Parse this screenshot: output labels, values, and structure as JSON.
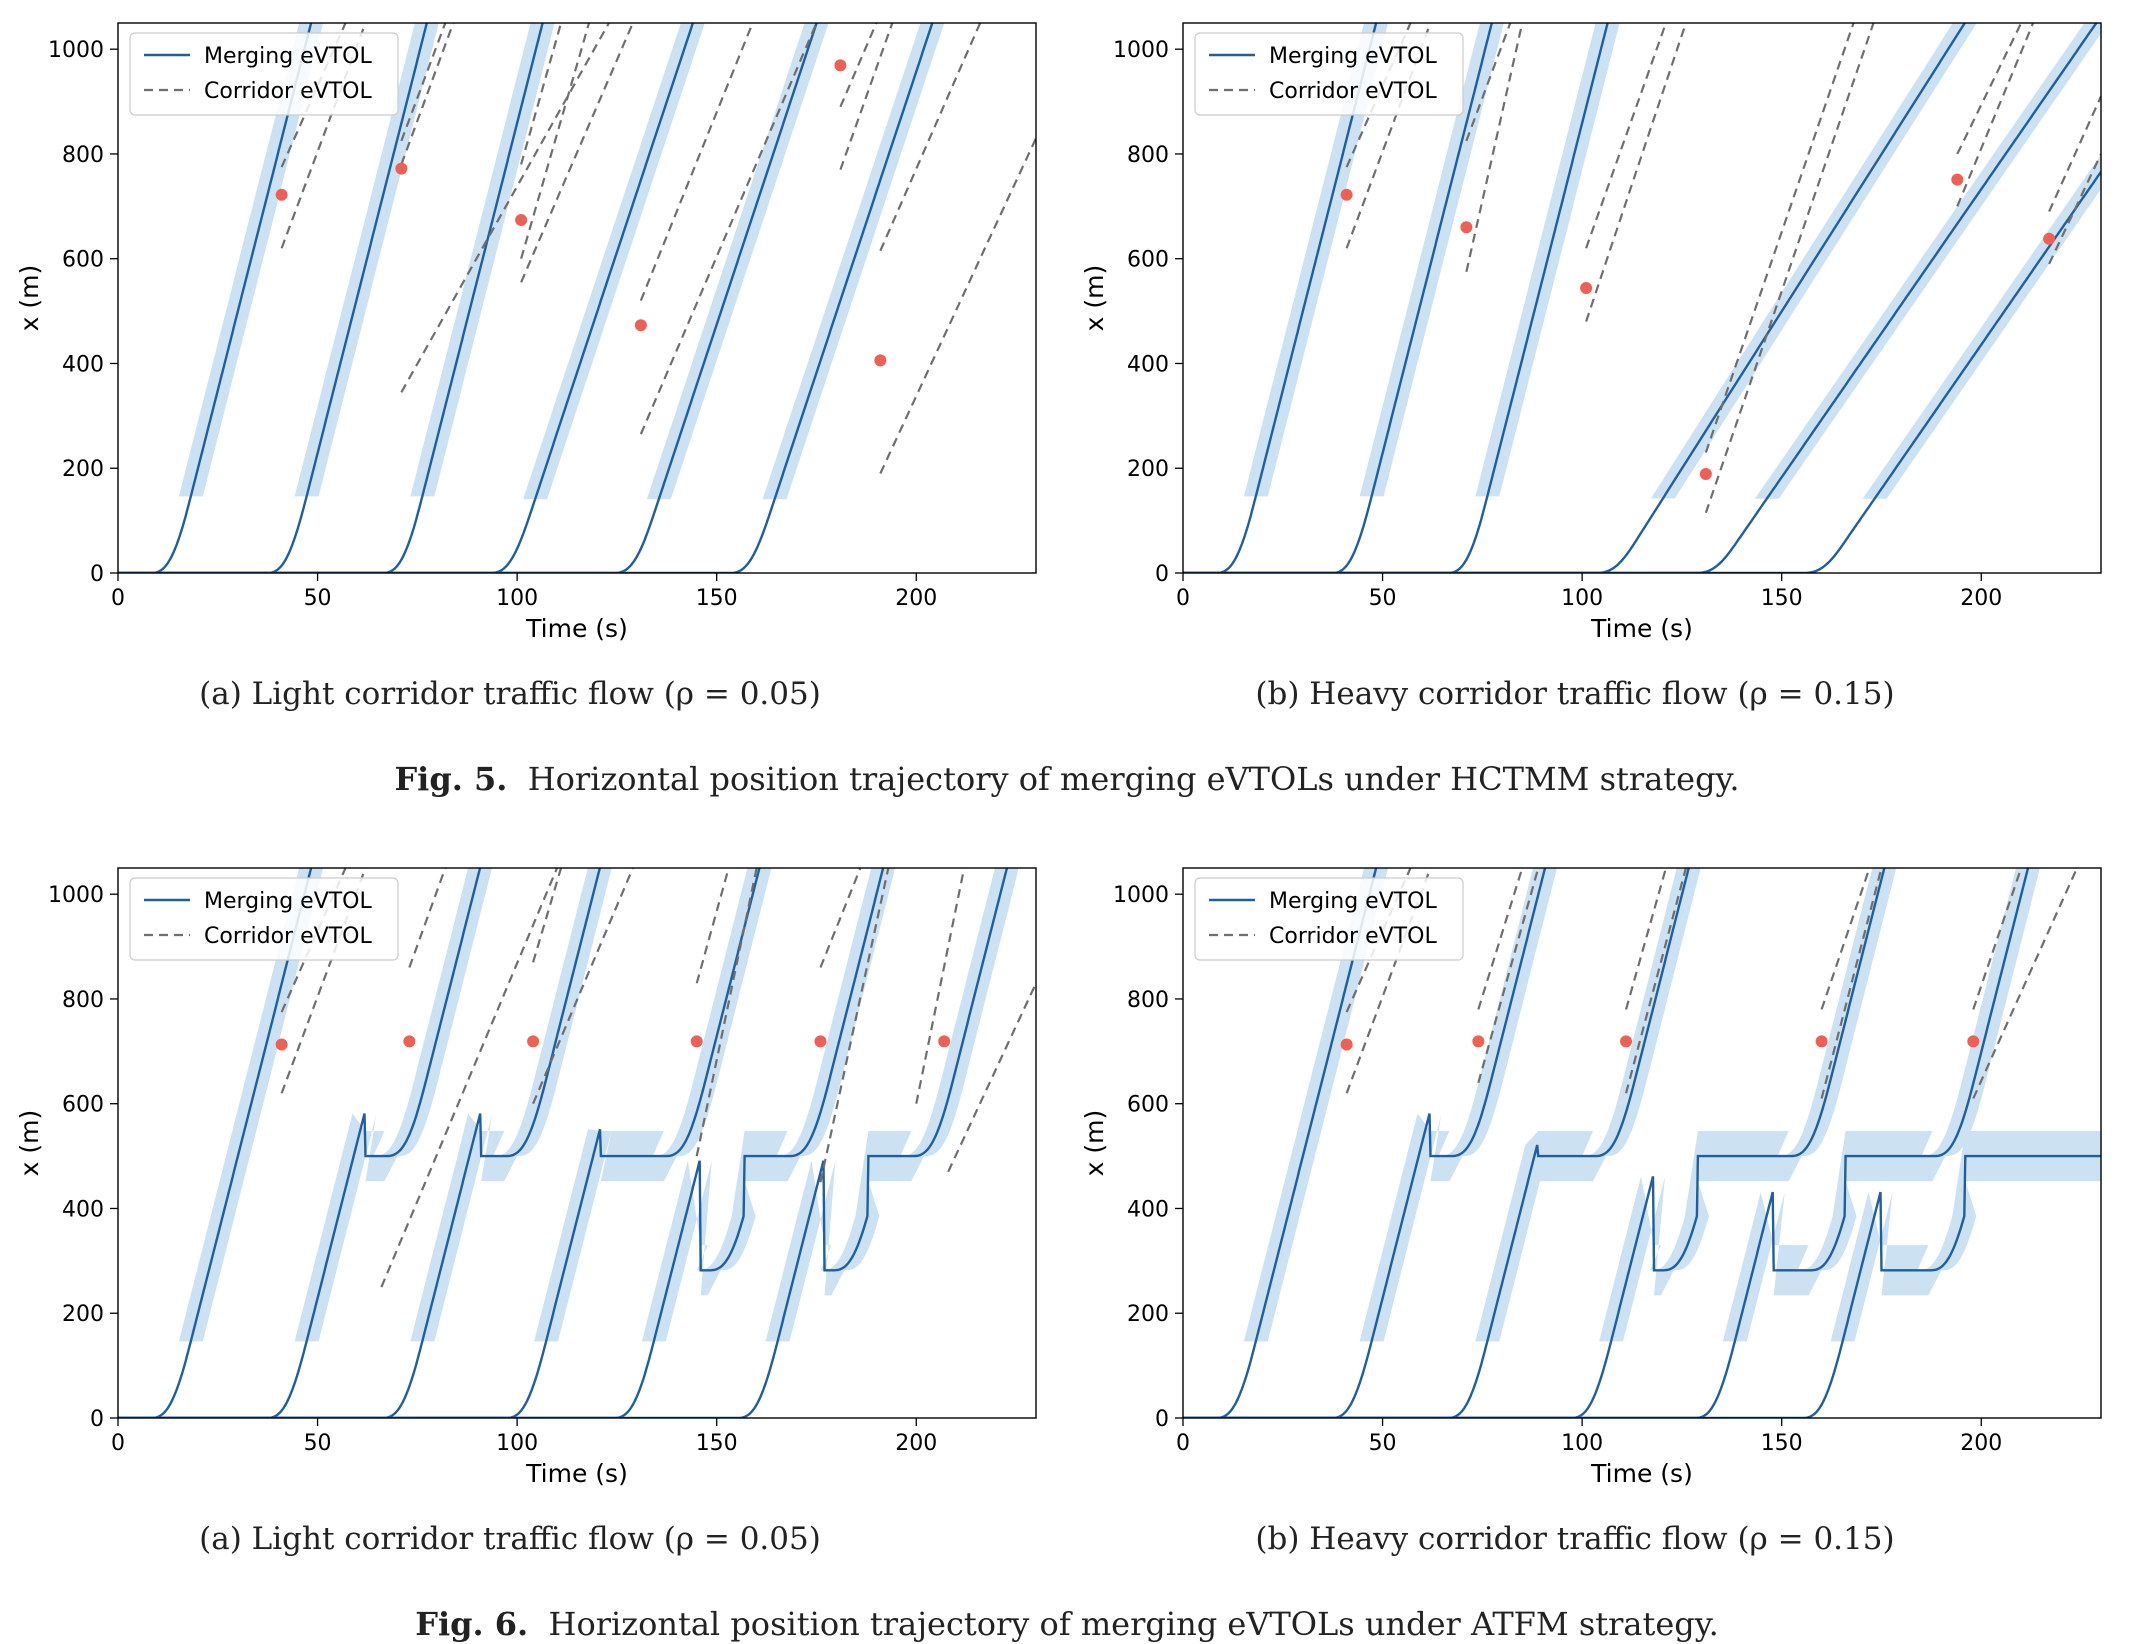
{
  "figures": [
    {
      "label": "Fig. 5.",
      "caption": "Horizontal position trajectory of merging eVTOLs under HCTMM strategy."
    },
    {
      "label": "Fig. 6.",
      "caption": "Horizontal position trajectory of merging eVTOLs under ATFM strategy."
    }
  ],
  "colors": {
    "merging": "#1f5f9e",
    "corridor": "#6e6e6e",
    "band": "#cce1f2",
    "merge_point": "#ee6055"
  },
  "chart_data": [
    {
      "type": "line",
      "caption": "(a) Light corridor traffic flow (ρ = 0.05)",
      "xlabel": "Time (s)",
      "ylabel": "x (m)",
      "xlim": [
        0,
        230
      ],
      "ylim": [
        0,
        1050
      ],
      "xticks": [
        0,
        50,
        100,
        150,
        200
      ],
      "yticks": [
        0,
        200,
        400,
        600,
        800,
        1000
      ],
      "legend": {
        "position": "top-left",
        "entries": [
          "Merging eVTOL",
          "Corridor eVTOL"
        ]
      },
      "merging": [
        {
          "t0": 8,
          "rate": 30,
          "hold": null
        },
        {
          "t0": 37,
          "rate": 30,
          "hold": null
        },
        {
          "t0": 66,
          "rate": 30,
          "hold": null
        },
        {
          "t0": 93,
          "rate": 23,
          "hold": null
        },
        {
          "t0": 124,
          "rate": 23,
          "hold": null
        },
        {
          "t0": 153,
          "rate": 23,
          "hold": null
        }
      ],
      "corridor": [
        {
          "t": [
            41,
            57
          ],
          "y": [
            775,
            1050
          ]
        },
        {
          "t": [
            41,
            62
          ],
          "y": [
            620,
            1050
          ]
        },
        {
          "t": [
            71,
            82
          ],
          "y": [
            825,
            1050
          ]
        },
        {
          "t": [
            71,
            84
          ],
          "y": [
            780,
            1050
          ]
        },
        {
          "t": [
            71,
            123
          ],
          "y": [
            345,
            1050
          ]
        },
        {
          "t": [
            101,
            111
          ],
          "y": [
            780,
            1050
          ]
        },
        {
          "t": [
            101,
            118
          ],
          "y": [
            600,
            1050
          ]
        },
        {
          "t": [
            101,
            129
          ],
          "y": [
            555,
            1050
          ]
        },
        {
          "t": [
            131,
            159
          ],
          "y": [
            520,
            1050
          ]
        },
        {
          "t": [
            131,
            175
          ],
          "y": [
            265,
            1050
          ]
        },
        {
          "t": [
            181,
            190
          ],
          "y": [
            890,
            1050
          ]
        },
        {
          "t": [
            181,
            194
          ],
          "y": [
            770,
            1050
          ]
        },
        {
          "t": [
            191,
            216
          ],
          "y": [
            615,
            1050
          ]
        },
        {
          "t": [
            191,
            230
          ],
          "y": [
            190,
            830
          ]
        }
      ],
      "merge_points": [
        {
          "t": 41,
          "x": 722
        },
        {
          "t": 71,
          "x": 772
        },
        {
          "t": 101,
          "x": 674
        },
        {
          "t": 131,
          "x": 473
        },
        {
          "t": 181,
          "x": 969
        },
        {
          "t": 191,
          "x": 406
        }
      ]
    },
    {
      "type": "line",
      "caption": "(b) Heavy corridor traffic flow (ρ = 0.15)",
      "xlabel": "Time (s)",
      "ylabel": "x (m)",
      "xlim": [
        0,
        230
      ],
      "ylim": [
        0,
        1050
      ],
      "xticks": [
        0,
        50,
        100,
        150,
        200
      ],
      "yticks": [
        0,
        200,
        400,
        600,
        800,
        1000
      ],
      "legend": {
        "position": "top-left",
        "entries": [
          "Merging eVTOL",
          "Corridor eVTOL"
        ]
      },
      "merging": [
        {
          "t0": 8,
          "rate": 30,
          "hold": null
        },
        {
          "t0": 37,
          "rate": 30,
          "hold": null
        },
        {
          "t0": 66,
          "rate": 30,
          "hold": null
        },
        {
          "t0": 103,
          "rate": 12,
          "hold": null
        },
        {
          "t0": 128,
          "rate": 11,
          "hold": null
        },
        {
          "t0": 155,
          "rate": 11,
          "hold": null
        }
      ],
      "corridor": [
        {
          "t": [
            41,
            57
          ],
          "y": [
            775,
            1050
          ]
        },
        {
          "t": [
            41,
            62
          ],
          "y": [
            620,
            1050
          ]
        },
        {
          "t": [
            71,
            82
          ],
          "y": [
            825,
            1050
          ]
        },
        {
          "t": [
            71,
            85
          ],
          "y": [
            575,
            1050
          ]
        },
        {
          "t": [
            101,
            121
          ],
          "y": [
            620,
            1050
          ]
        },
        {
          "t": [
            101,
            126
          ],
          "y": [
            480,
            1050
          ]
        },
        {
          "t": [
            131,
            168
          ],
          "y": [
            230,
            1050
          ]
        },
        {
          "t": [
            131,
            173
          ],
          "y": [
            115,
            1050
          ]
        },
        {
          "t": [
            194,
            210
          ],
          "y": [
            800,
            1050
          ]
        },
        {
          "t": [
            194,
            213
          ],
          "y": [
            700,
            1050
          ]
        },
        {
          "t": [
            217,
            230
          ],
          "y": [
            690,
            910
          ]
        },
        {
          "t": [
            217,
            230
          ],
          "y": [
            590,
            800
          ]
        }
      ],
      "merge_points": [
        {
          "t": 41,
          "x": 722
        },
        {
          "t": 71,
          "x": 660
        },
        {
          "t": 101,
          "x": 544
        },
        {
          "t": 131,
          "x": 189
        },
        {
          "t": 194,
          "x": 751
        },
        {
          "t": 217,
          "x": 638
        }
      ]
    },
    {
      "type": "line",
      "caption": "(a) Light corridor traffic flow (ρ = 0.05)",
      "xlabel": "Time (s)",
      "ylabel": "x (m)",
      "xlim": [
        0,
        230
      ],
      "ylim": [
        0,
        1050
      ],
      "xticks": [
        0,
        50,
        100,
        150,
        200
      ],
      "yticks": [
        0,
        200,
        400,
        600,
        800,
        1000
      ],
      "legend": {
        "position": "top-left",
        "entries": [
          "Merging eVTOL",
          "Corridor eVTOL"
        ]
      },
      "merging": [
        {
          "t0": 8,
          "rate": 30,
          "hold": null
        },
        {
          "t0": 37,
          "rate": 30,
          "hold": [
            [
              500,
              62,
              67
            ]
          ]
        },
        {
          "t0": 66,
          "rate": 30,
          "hold": [
            [
              500,
              91,
              97
            ]
          ]
        },
        {
          "t0": 97,
          "rate": 30,
          "hold": [
            [
              500,
              121,
              137
            ]
          ]
        },
        {
          "t0": 124,
          "rate": 30,
          "hold": [
            [
              282,
              146,
              148
            ],
            [
              500,
              157,
              168
            ]
          ]
        },
        {
          "t0": 155,
          "rate": 30,
          "hold": [
            [
              282,
              177,
              179
            ],
            [
              500,
              188,
              199
            ]
          ]
        }
      ],
      "corridor": [
        {
          "t": [
            41,
            57
          ],
          "y": [
            775,
            1050
          ]
        },
        {
          "t": [
            41,
            62
          ],
          "y": [
            620,
            1050
          ]
        },
        {
          "t": [
            73,
            82
          ],
          "y": [
            860,
            1050
          ]
        },
        {
          "t": [
            66,
            110
          ],
          "y": [
            250,
            1050
          ]
        },
        {
          "t": [
            104,
            111
          ],
          "y": [
            870,
            1050
          ]
        },
        {
          "t": [
            104,
            129
          ],
          "y": [
            600,
            1050
          ]
        },
        {
          "t": [
            145,
            153
          ],
          "y": [
            830,
            1050
          ]
        },
        {
          "t": [
            145,
            160
          ],
          "y": [
            500,
            1050
          ]
        },
        {
          "t": [
            176,
            186
          ],
          "y": [
            860,
            1050
          ]
        },
        {
          "t": [
            176,
            193
          ],
          "y": [
            450,
            1050
          ]
        },
        {
          "t": [
            200,
            212
          ],
          "y": [
            600,
            1050
          ]
        },
        {
          "t": [
            208,
            230
          ],
          "y": [
            470,
            830
          ]
        }
      ],
      "merge_points": [
        {
          "t": 41,
          "x": 713
        },
        {
          "t": 73,
          "x": 719
        },
        {
          "t": 104,
          "x": 719
        },
        {
          "t": 145,
          "x": 719
        },
        {
          "t": 176,
          "x": 719
        },
        {
          "t": 207,
          "x": 719
        }
      ]
    },
    {
      "type": "line",
      "caption": "(b) Heavy corridor traffic flow (ρ = 0.15)",
      "xlabel": "Time (s)",
      "ylabel": "x (m)",
      "xlim": [
        0,
        230
      ],
      "ylim": [
        0,
        1050
      ],
      "xticks": [
        0,
        50,
        100,
        150,
        200
      ],
      "yticks": [
        0,
        200,
        400,
        600,
        800,
        1000
      ],
      "legend": {
        "position": "top-left",
        "entries": [
          "Merging eVTOL",
          "Corridor eVTOL"
        ]
      },
      "merging": [
        {
          "t0": 8,
          "rate": 30,
          "hold": null
        },
        {
          "t0": 37,
          "rate": 30,
          "hold": [
            [
              500,
              62,
              67
            ]
          ]
        },
        {
          "t0": 66,
          "rate": 30,
          "hold": [
            [
              500,
              89,
              103
            ]
          ]
        },
        {
          "t0": 97,
          "rate": 30,
          "hold": [
            [
              282,
              118,
              120
            ],
            [
              500,
              129,
              152
            ]
          ]
        },
        {
          "t0": 128,
          "rate": 30,
          "hold": [
            [
              282,
              148,
              157
            ],
            [
              500,
              166,
              188
            ]
          ]
        },
        {
          "t0": 155,
          "rate": 30,
          "hold": [
            [
              282,
              175,
              187
            ],
            [
              500,
              196,
              235
            ]
          ]
        }
      ],
      "corridor": [
        {
          "t": [
            41,
            57
          ],
          "y": [
            775,
            1050
          ]
        },
        {
          "t": [
            41,
            62
          ],
          "y": [
            620,
            1050
          ]
        },
        {
          "t": [
            74,
            85
          ],
          "y": [
            780,
            1050
          ]
        },
        {
          "t": [
            74,
            89
          ],
          "y": [
            640,
            1050
          ]
        },
        {
          "t": [
            111,
            121
          ],
          "y": [
            780,
            1050
          ]
        },
        {
          "t": [
            111,
            126
          ],
          "y": [
            620,
            1050
          ]
        },
        {
          "t": [
            160,
            172
          ],
          "y": [
            780,
            1050
          ]
        },
        {
          "t": [
            160,
            175
          ],
          "y": [
            610,
            1050
          ]
        },
        {
          "t": [
            198,
            210
          ],
          "y": [
            780,
            1050
          ]
        },
        {
          "t": [
            198,
            224
          ],
          "y": [
            610,
            1050
          ]
        }
      ],
      "merge_points": [
        {
          "t": 41,
          "x": 713
        },
        {
          "t": 74,
          "x": 719
        },
        {
          "t": 111,
          "x": 719
        },
        {
          "t": 160,
          "x": 719
        },
        {
          "t": 198,
          "x": 719
        }
      ]
    }
  ]
}
